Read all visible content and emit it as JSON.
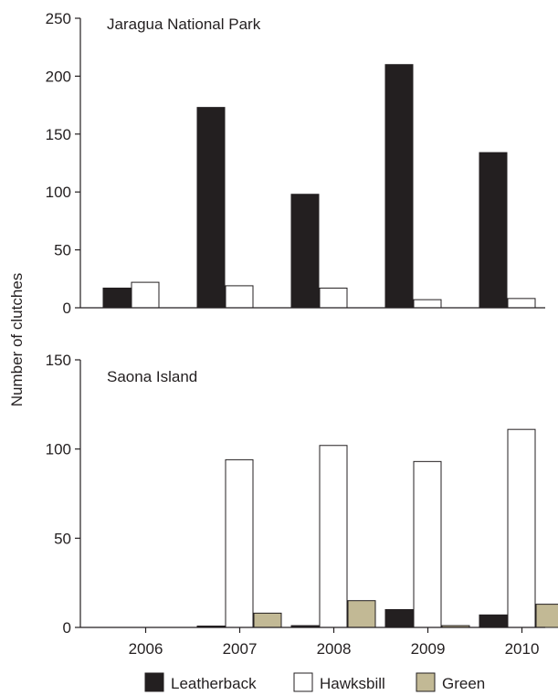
{
  "chart_data": {
    "type": "bar",
    "ylabel": "Number of clutches",
    "categories": [
      "2006",
      "2007",
      "2008",
      "2009",
      "2010"
    ],
    "legend": {
      "placement": "bottom",
      "entries": [
        {
          "name": "Leatherback",
          "color": "#231f20"
        },
        {
          "name": "Hawksbill",
          "color": "#ffffff"
        },
        {
          "name": "Green",
          "color": "#c2b995"
        }
      ]
    },
    "panels": [
      {
        "title": "Jaragua National Park",
        "ylim": [
          0,
          250
        ],
        "yticks": [
          0,
          50,
          100,
          150,
          200,
          250
        ],
        "series": [
          {
            "name": "Leatherback",
            "values": [
              17,
              173,
              98,
              210,
              134
            ]
          },
          {
            "name": "Hawksbill",
            "values": [
              22,
              19,
              17,
              7,
              8
            ]
          }
        ]
      },
      {
        "title": "Saona Island",
        "ylim": [
          0,
          150
        ],
        "yticks": [
          0,
          50,
          100,
          150
        ],
        "series": [
          {
            "name": "Leatherback",
            "values": [
              0,
              0.5,
              1,
              10,
              7
            ]
          },
          {
            "name": "Hawksbill",
            "values": [
              0,
              94,
              102,
              93,
              111
            ]
          },
          {
            "name": "Green",
            "values": [
              0,
              8,
              15,
              1,
              13
            ]
          }
        ]
      }
    ]
  }
}
